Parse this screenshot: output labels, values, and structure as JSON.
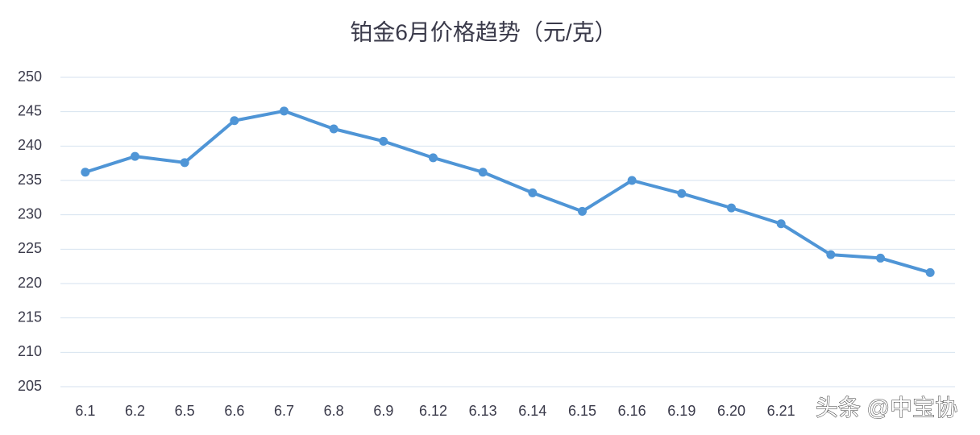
{
  "chart_data": {
    "type": "line",
    "title": "铂金6月价格趋势（元/克）",
    "categories": [
      "6.1",
      "6.2",
      "6.5",
      "6.6",
      "6.7",
      "6.8",
      "6.9",
      "6.12",
      "6.13",
      "6.14",
      "6.15",
      "6.16",
      "6.19",
      "6.20",
      "6.21",
      null,
      null,
      null
    ],
    "series": [
      {
        "name": "铂金",
        "color": "#4f95d6",
        "values": [
          236.2,
          238.5,
          237.6,
          243.7,
          245.1,
          242.5,
          240.7,
          238.3,
          236.2,
          233.2,
          230.5,
          235.0,
          233.1,
          231.0,
          228.7,
          224.2,
          223.7,
          221.6
        ]
      }
    ],
    "ylim": [
      205,
      250
    ],
    "yticks": [
      205,
      210,
      215,
      220,
      225,
      230,
      235,
      240,
      245,
      250
    ],
    "grid": true,
    "watermark": "头条 @中宝协"
  }
}
